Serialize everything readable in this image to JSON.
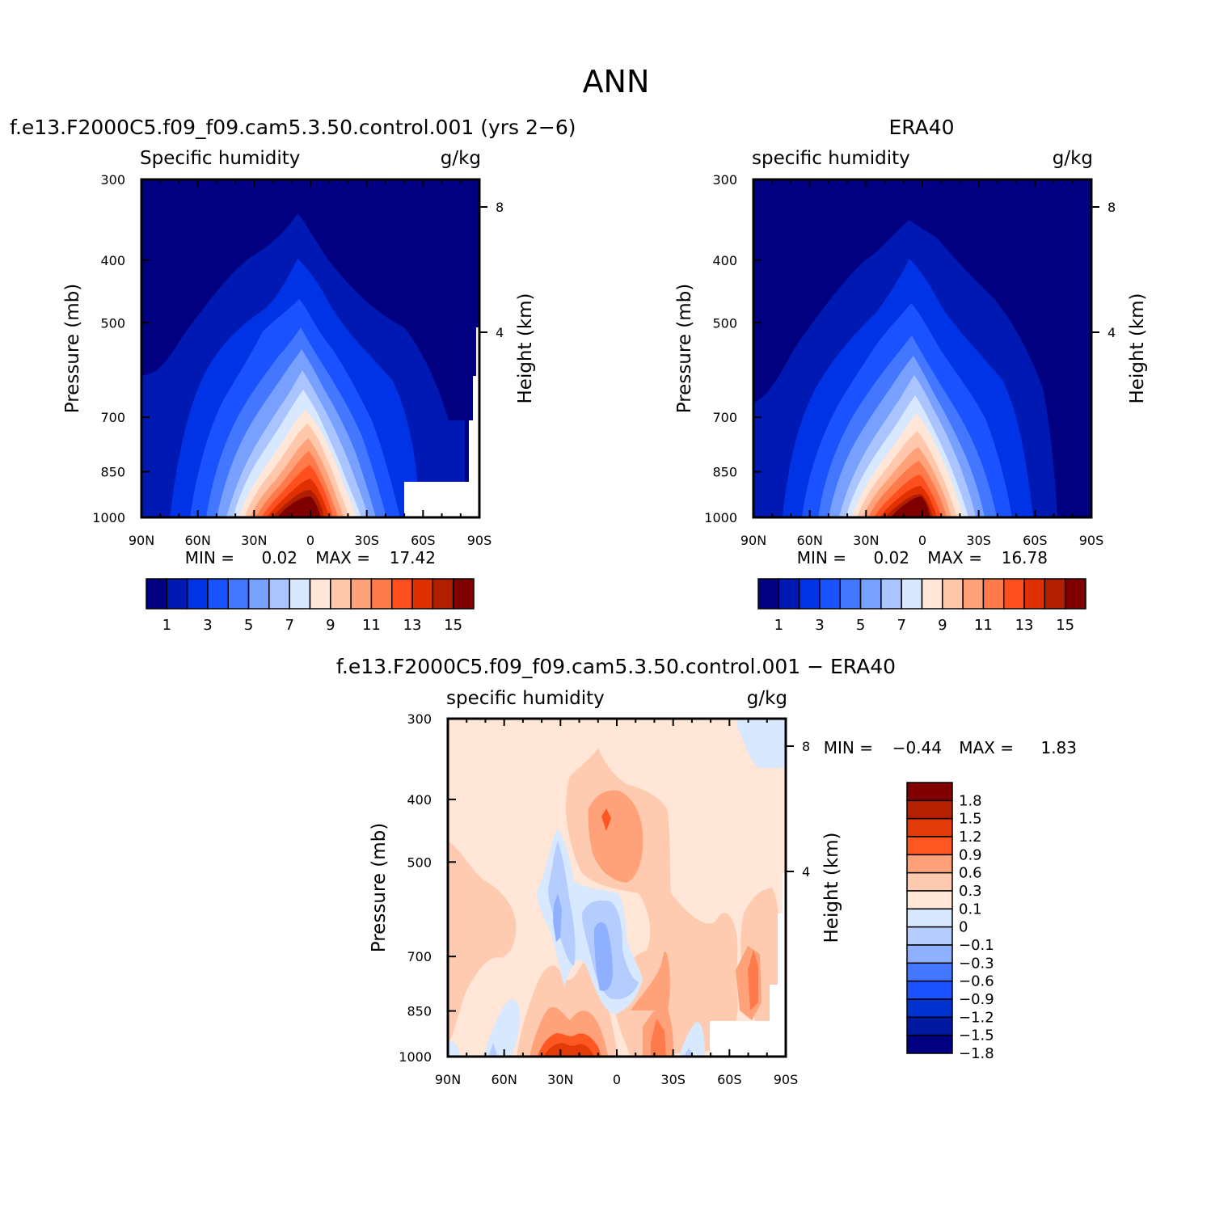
{
  "figure": {
    "title": "ANN",
    "diff_title": "f.e13.F2000C5.f09_f09.cam5.3.50.control.001 − ERA40"
  },
  "panels": [
    {
      "title": "f.e13.F2000C5.f09_f09.cam5.3.50.control.001 (yrs 2−6)",
      "left_label": "Specific humidity",
      "right_label": "g/kg",
      "ylabel": "Pressure (mb)",
      "ylabel_right": "Height (km)",
      "min_label": "MIN =",
      "min_value": "0.02",
      "max_label": "MAX =",
      "max_value": "17.42"
    },
    {
      "title": "ERA40",
      "left_label": "specific humidity",
      "right_label": "g/kg",
      "ylabel": "Pressure (mb)",
      "ylabel_right": "Height (km)",
      "min_label": "MIN =",
      "min_value": "0.02",
      "max_label": "MAX =",
      "max_value": "16.78"
    },
    {
      "title": "",
      "left_label": "specific humidity",
      "right_label": "g/kg",
      "ylabel": "Pressure (mb)",
      "ylabel_right": "Height (km)",
      "min_label": "MIN =",
      "min_value": "−0.44",
      "max_label": "MAX =",
      "max_value": "1.83"
    }
  ],
  "axes": {
    "x_ticks": [
      "90N",
      "60N",
      "30N",
      "0",
      "30S",
      "60S",
      "90S"
    ],
    "y_ticks": [
      "300",
      "400",
      "500",
      "700",
      "850",
      "1000"
    ],
    "height_ticks": [
      "8",
      "4"
    ]
  },
  "colorbars": {
    "abs_colors": [
      "#000080",
      "#0019b3",
      "#0032e6",
      "#1a52ff",
      "#4477ff",
      "#77a0ff",
      "#aac4ff",
      "#d8e8ff",
      "#ffe6d6",
      "#ffc8ad",
      "#ffa27a",
      "#ff7a4a",
      "#ff4f1f",
      "#e03000",
      "#b02000",
      "#800000"
    ],
    "abs_labels": [
      "1",
      "3",
      "5",
      "7",
      "9",
      "11",
      "13",
      "15"
    ],
    "diff_colors": [
      "#800000",
      "#b52000",
      "#e33a0a",
      "#ff5722",
      "#ffa27a",
      "#ffcbb0",
      "#ffe6d6",
      "#d8e8ff",
      "#b5ccff",
      "#8fb0ff",
      "#4477ff",
      "#1a52ff",
      "#0032d0",
      "#0019a0",
      "#000080"
    ],
    "diff_labels": [
      "1.8",
      "1.5",
      "1.2",
      "0.9",
      "0.6",
      "0.3",
      "0.1",
      "0",
      "−0.1",
      "−0.3",
      "−0.6",
      "−0.9",
      "−1.2",
      "−1.5",
      "−1.8"
    ]
  },
  "chart_data": [
    {
      "type": "heatmap",
      "title": "f.e13.F2000C5.f09_f09.cam5.3.50.control.001 (yrs 2−6)",
      "variable": "Specific humidity",
      "units": "g/kg",
      "xlabel": "",
      "ylabel": "Pressure (mb)",
      "ylabel_right": "Height (km)",
      "x_ticks": [
        "90N",
        "60N",
        "30N",
        "0",
        "30S",
        "60S",
        "90S"
      ],
      "y_ticks": [
        300,
        400,
        500,
        700,
        850,
        1000
      ],
      "xlim": [
        90,
        -90
      ],
      "ylim": [
        1000,
        300
      ],
      "y_scale": "log",
      "contour_levels": [
        0,
        1,
        2,
        3,
        4,
        5,
        6,
        7,
        8,
        9,
        10,
        11,
        12,
        13,
        14,
        15,
        16
      ],
      "min": 0.02,
      "max": 17.42
    },
    {
      "type": "heatmap",
      "title": "ERA40",
      "variable": "specific humidity",
      "units": "g/kg",
      "xlabel": "",
      "ylabel": "Pressure (mb)",
      "ylabel_right": "Height (km)",
      "x_ticks": [
        "90N",
        "60N",
        "30N",
        "0",
        "30S",
        "60S",
        "90S"
      ],
      "y_ticks": [
        300,
        400,
        500,
        700,
        850,
        1000
      ],
      "xlim": [
        90,
        -90
      ],
      "ylim": [
        1000,
        300
      ],
      "y_scale": "log",
      "contour_levels": [
        0,
        1,
        2,
        3,
        4,
        5,
        6,
        7,
        8,
        9,
        10,
        11,
        12,
        13,
        14,
        15,
        16
      ],
      "min": 0.02,
      "max": 16.78
    },
    {
      "type": "heatmap",
      "title": "f.e13.F2000C5.f09_f09.cam5.3.50.control.001 − ERA40",
      "variable": "specific humidity",
      "units": "g/kg",
      "xlabel": "",
      "ylabel": "Pressure (mb)",
      "ylabel_right": "Height (km)",
      "x_ticks": [
        "90N",
        "60N",
        "30N",
        "0",
        "30S",
        "60S",
        "90S"
      ],
      "y_ticks": [
        300,
        400,
        500,
        700,
        850,
        1000
      ],
      "xlim": [
        90,
        -90
      ],
      "ylim": [
        1000,
        300
      ],
      "y_scale": "log",
      "contour_levels": [
        -1.8,
        -1.5,
        -1.2,
        -0.9,
        -0.6,
        -0.3,
        -0.1,
        0,
        0.1,
        0.3,
        0.6,
        0.9,
        1.2,
        1.5,
        1.8
      ],
      "min": -0.44,
      "max": 1.83
    }
  ]
}
